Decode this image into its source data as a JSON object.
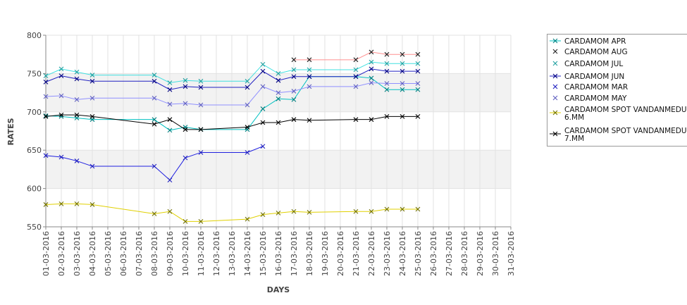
{
  "chart_data": {
    "type": "line",
    "title": "",
    "xlabel": "DAYS",
    "ylabel": "RATES",
    "ylim": [
      550,
      800
    ],
    "yticks": [
      550,
      600,
      650,
      700,
      750,
      800
    ],
    "x_categories": [
      "01-03-2016",
      "02-03-2016",
      "03-03-2016",
      "04-03-2016",
      "05-03-2016",
      "06-03-2016",
      "07-03-2016",
      "08-03-2016",
      "09-03-2016",
      "10-03-2016",
      "11-03-2016",
      "12-03-2016",
      "13-03-2016",
      "14-03-2016",
      "15-03-2016",
      "16-03-2016",
      "17-03-2016",
      "18-03-2016",
      "19-03-2016",
      "20-03-2016",
      "21-03-2016",
      "22-03-2016",
      "23-03-2016",
      "24-03-2016",
      "25-03-2016",
      "26-03-2016",
      "27-03-2016",
      "28-03-2016",
      "29-03-2016",
      "30-03-2016",
      "31-03-2016"
    ],
    "grid": true,
    "alternating_bands": true,
    "legend_position": "right",
    "marker": "x",
    "series": [
      {
        "name": "CARDAMOM APR",
        "color": "#008080",
        "line_color": "#00c0c0",
        "x": [
          "01-03-2016",
          "02-03-2016",
          "03-03-2016",
          "04-03-2016",
          "08-03-2016",
          "09-03-2016",
          "10-03-2016",
          "11-03-2016",
          "14-03-2016",
          "15-03-2016",
          "16-03-2016",
          "17-03-2016",
          "18-03-2016",
          "21-03-2016",
          "22-03-2016",
          "23-03-2016",
          "24-03-2016",
          "25-03-2016"
        ],
        "y": [
          695,
          694,
          692,
          690,
          690,
          676,
          680,
          677,
          677,
          704,
          717,
          716,
          746,
          746,
          744,
          729,
          729,
          729
        ]
      },
      {
        "name": "CARDAMOM AUG",
        "color": "#222222",
        "line_color": "#ff9090",
        "x": [
          "17-03-2016",
          "18-03-2016",
          "21-03-2016",
          "22-03-2016",
          "23-03-2016",
          "24-03-2016",
          "25-03-2016"
        ],
        "y": [
          768,
          768,
          768,
          778,
          775,
          775,
          775
        ]
      },
      {
        "name": "CARDAMOM JUL",
        "color": "#20a0a0",
        "line_color": "#40e0e0",
        "x": [
          "01-03-2016",
          "02-03-2016",
          "03-03-2016",
          "04-03-2016",
          "08-03-2016",
          "09-03-2016",
          "10-03-2016",
          "11-03-2016",
          "14-03-2016",
          "15-03-2016",
          "16-03-2016",
          "17-03-2016",
          "18-03-2016",
          "21-03-2016",
          "22-03-2016",
          "23-03-2016",
          "24-03-2016",
          "25-03-2016"
        ],
        "y": [
          747,
          756,
          752,
          748,
          748,
          738,
          741,
          740,
          740,
          762,
          750,
          755,
          755,
          755,
          765,
          763,
          763,
          763
        ]
      },
      {
        "name": "CARDAMOM JUN",
        "color": "#000080",
        "line_color": "#2020c0",
        "x": [
          "01-03-2016",
          "02-03-2016",
          "03-03-2016",
          "04-03-2016",
          "08-03-2016",
          "09-03-2016",
          "10-03-2016",
          "11-03-2016",
          "14-03-2016",
          "15-03-2016",
          "16-03-2016",
          "17-03-2016",
          "18-03-2016",
          "21-03-2016",
          "22-03-2016",
          "23-03-2016",
          "24-03-2016",
          "25-03-2016"
        ],
        "y": [
          739,
          747,
          743,
          740,
          740,
          729,
          733,
          732,
          732,
          753,
          741,
          746,
          746,
          746,
          756,
          753,
          753,
          753
        ]
      },
      {
        "name": "CARDAMOM MAR",
        "color": "#2020c0",
        "line_color": "#2020e0",
        "x": [
          "01-03-2016",
          "02-03-2016",
          "03-03-2016",
          "04-03-2016",
          "08-03-2016",
          "09-03-2016",
          "10-03-2016",
          "11-03-2016",
          "14-03-2016",
          "15-03-2016"
        ],
        "y": [
          643,
          641,
          636,
          629,
          629,
          611,
          640,
          647,
          647,
          655
        ]
      },
      {
        "name": "CARDAMOM MAY",
        "color": "#6060c0",
        "line_color": "#9090ff",
        "x": [
          "01-03-2016",
          "02-03-2016",
          "03-03-2016",
          "04-03-2016",
          "08-03-2016",
          "09-03-2016",
          "10-03-2016",
          "11-03-2016",
          "14-03-2016",
          "15-03-2016",
          "16-03-2016",
          "17-03-2016",
          "18-03-2016",
          "21-03-2016",
          "22-03-2016",
          "23-03-2016",
          "24-03-2016",
          "25-03-2016"
        ],
        "y": [
          720,
          721,
          716,
          718,
          718,
          710,
          711,
          709,
          709,
          733,
          725,
          727,
          733,
          733,
          738,
          737,
          737,
          737
        ]
      },
      {
        "name": "CARDAMOM SPOT VANDANMEDU 6.MM",
        "color": "#707000",
        "line_color": "#e0d000",
        "x": [
          "01-03-2016",
          "02-03-2016",
          "03-03-2016",
          "04-03-2016",
          "08-03-2016",
          "09-03-2016",
          "10-03-2016",
          "11-03-2016",
          "14-03-2016",
          "15-03-2016",
          "16-03-2016",
          "17-03-2016",
          "18-03-2016",
          "21-03-2016",
          "22-03-2016",
          "23-03-2016",
          "24-03-2016",
          "25-03-2016"
        ],
        "y": [
          579,
          580,
          580,
          579,
          567,
          570,
          557,
          557,
          560,
          566,
          568,
          570,
          569,
          570,
          570,
          573,
          573,
          573
        ]
      },
      {
        "name": "CARDAMOM SPOT VANDANMEDU 7.MM",
        "color": "#000000",
        "line_color": "#000000",
        "x": [
          "01-03-2016",
          "02-03-2016",
          "03-03-2016",
          "04-03-2016",
          "08-03-2016",
          "09-03-2016",
          "10-03-2016",
          "11-03-2016",
          "14-03-2016",
          "15-03-2016",
          "16-03-2016",
          "17-03-2016",
          "18-03-2016",
          "21-03-2016",
          "22-03-2016",
          "23-03-2016",
          "24-03-2016",
          "25-03-2016"
        ],
        "y": [
          694,
          696,
          696,
          694,
          684,
          690,
          677,
          677,
          680,
          686,
          686,
          690,
          689,
          690,
          690,
          694,
          694,
          694
        ]
      }
    ]
  },
  "legend": {
    "items": [
      {
        "line1": "CARDAMOM APR",
        "line2": ""
      },
      {
        "line1": "CARDAMOM AUG",
        "line2": ""
      },
      {
        "line1": "CARDAMOM JUL",
        "line2": ""
      },
      {
        "line1": "CARDAMOM JUN",
        "line2": ""
      },
      {
        "line1": "CARDAMOM MAR",
        "line2": ""
      },
      {
        "line1": "CARDAMOM MAY",
        "line2": ""
      },
      {
        "line1": "CARDAMOM SPOT VANDANMEDU",
        "line2": "6.MM"
      },
      {
        "line1": "CARDAMOM SPOT VANDANMEDU",
        "line2": "7.MM"
      }
    ]
  }
}
